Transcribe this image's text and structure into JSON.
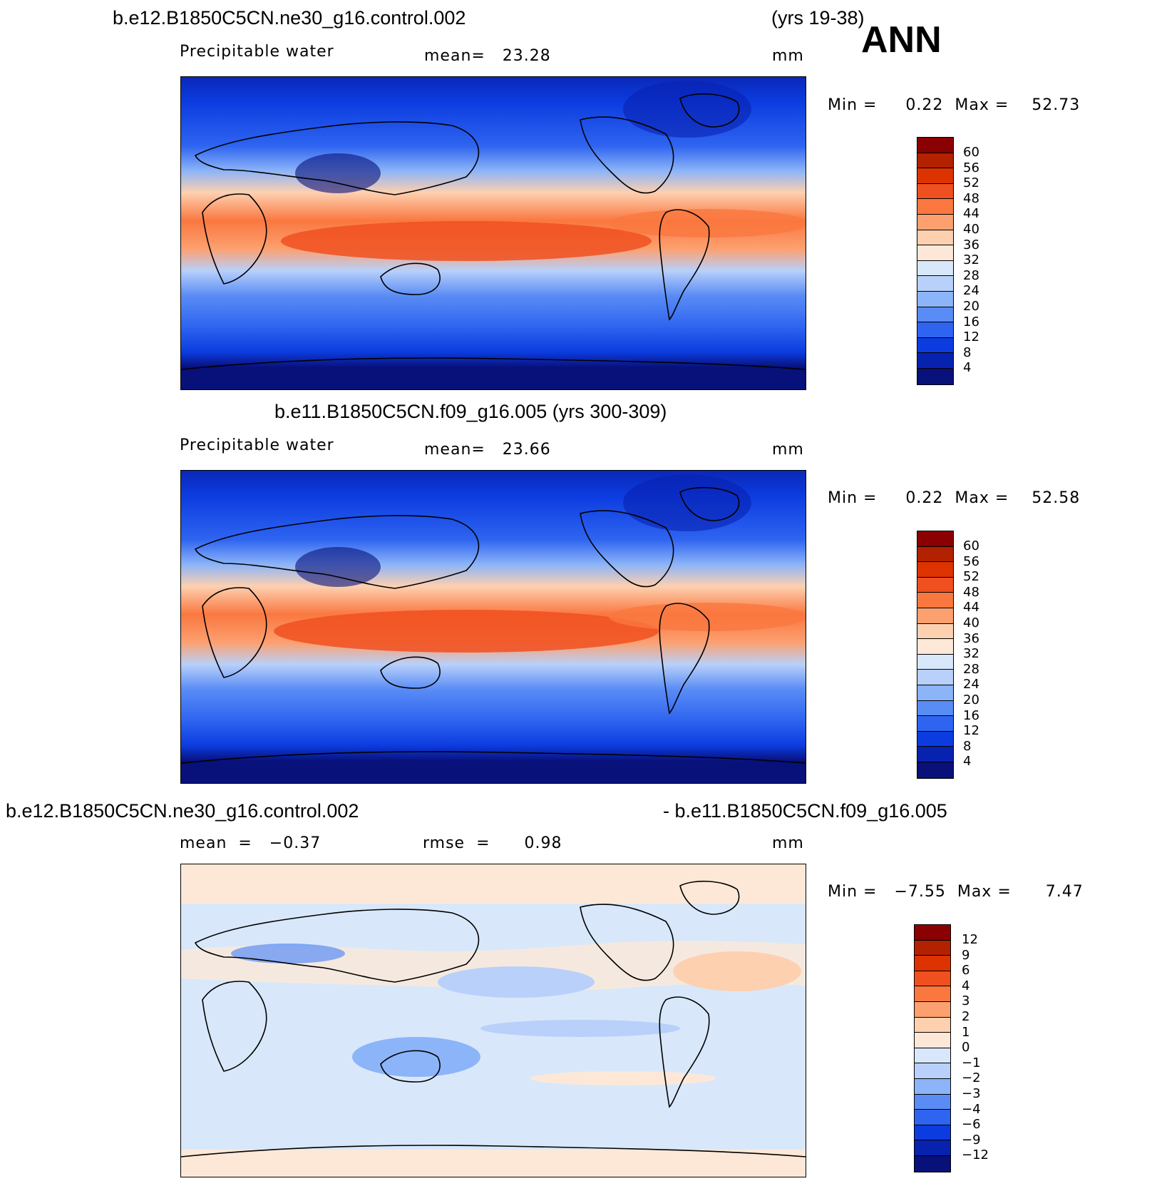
{
  "season": "ANN",
  "header": {
    "case1_title": "b.e12.B1850C5CN.ne30_g16.control.002",
    "case1_years": "(yrs 19-38)",
    "case2_title": "b.e11.B1850C5CN.f09_g16.005 (yrs 300-309)",
    "diff_title_left": "b.e12.B1850C5CN.ne30_g16.control.002",
    "diff_title_right": "- b.e11.B1850C5CN.f09_g16.005"
  },
  "panels": [
    {
      "variable": "Precipitable water",
      "stat1": "mean=   23.28",
      "units": "mm",
      "minmax": "Min =     0.22  Max =    52.73",
      "colorbar": {
        "labels": [
          "60",
          "56",
          "52",
          "48",
          "44",
          "40",
          "36",
          "32",
          "28",
          "24",
          "20",
          "16",
          "12",
          "8",
          "4"
        ],
        "colors": [
          "#8b0000",
          "#b22200",
          "#dc3300",
          "#f05020",
          "#fa7840",
          "#fca070",
          "#fdd0b0",
          "#fde8d8",
          "#d8e8fa",
          "#b8d0fa",
          "#8cb4f8",
          "#5a8cf5",
          "#2e64f0",
          "#0c3ce0",
          "#0822b0",
          "#08107a"
        ]
      }
    },
    {
      "variable": "Precipitable water",
      "stat1": "mean=   23.66",
      "units": "mm",
      "minmax": "Min =     0.22  Max =    52.58",
      "colorbar": {
        "labels": [
          "60",
          "56",
          "52",
          "48",
          "44",
          "40",
          "36",
          "32",
          "28",
          "24",
          "20",
          "16",
          "12",
          "8",
          "4"
        ],
        "colors": [
          "#8b0000",
          "#b22200",
          "#dc3300",
          "#f05020",
          "#fa7840",
          "#fca070",
          "#fdd0b0",
          "#fde8d8",
          "#d8e8fa",
          "#b8d0fa",
          "#8cb4f8",
          "#5a8cf5",
          "#2e64f0",
          "#0c3ce0",
          "#0822b0",
          "#08107a"
        ]
      }
    },
    {
      "stat1": "mean  =   −0.37",
      "stat2": "rmse  =      0.98",
      "units": "mm",
      "minmax": "Min =   −7.55  Max =      7.47",
      "colorbar": {
        "labels": [
          "12",
          "9",
          "6",
          "4",
          "3",
          "2",
          "1",
          "0",
          "−1",
          "−2",
          "−3",
          "−4",
          "−6",
          "−9",
          "−12"
        ],
        "colors": [
          "#8b0000",
          "#b22200",
          "#dc3300",
          "#f05020",
          "#fa7840",
          "#fca070",
          "#fdd0b0",
          "#fde8d8",
          "#d8e8fa",
          "#b8d0fa",
          "#8cb4f8",
          "#5a8cf5",
          "#2e64f0",
          "#0c3ce0",
          "#0822b0",
          "#08107a"
        ]
      }
    }
  ]
}
